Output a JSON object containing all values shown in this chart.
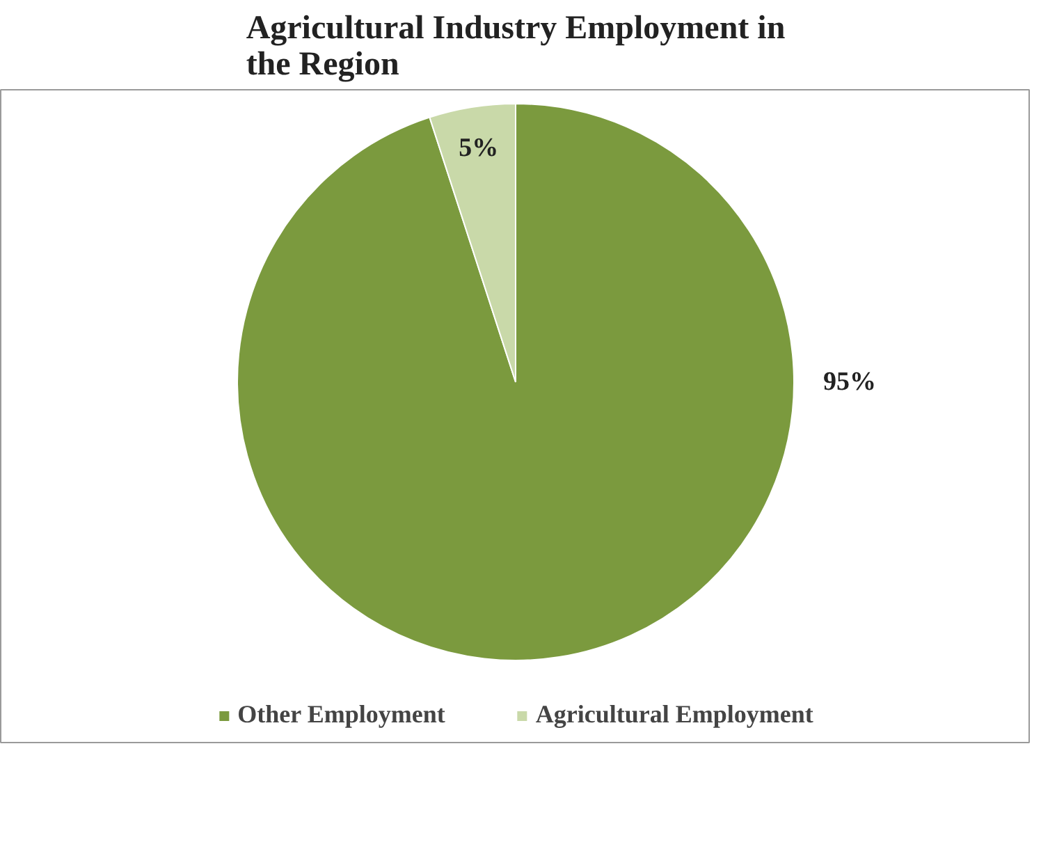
{
  "chart_data": {
    "type": "pie",
    "title": "Agricultural Industry Employment in the Region",
    "categories": [
      "Other Employment",
      "Agricultural Employment"
    ],
    "values": [
      95,
      5
    ],
    "colors": [
      "#7b9a3e",
      "#c9d9a9"
    ],
    "value_labels": [
      "95%",
      "5%"
    ],
    "legend": "bottom"
  }
}
